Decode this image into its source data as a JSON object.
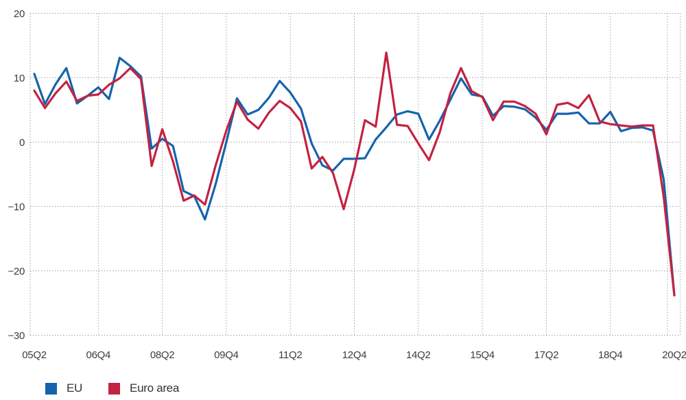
{
  "chart_data": {
    "type": "line",
    "title": "",
    "xlabel": "",
    "ylabel": "",
    "ylim": [
      -30,
      20
    ],
    "y_ticks": [
      20,
      10,
      0,
      -10,
      -20,
      -30
    ],
    "x_tick_labels": [
      "05Q2",
      "06Q4",
      "08Q2",
      "09Q4",
      "11Q2",
      "12Q4",
      "14Q2",
      "15Q4",
      "17Q2",
      "18Q4",
      "20Q2"
    ],
    "grid": "dotted",
    "legend_position": "bottom-left",
    "quarters": [
      "05Q2",
      "05Q3",
      "05Q4",
      "06Q1",
      "06Q2",
      "06Q3",
      "06Q4",
      "07Q1",
      "07Q2",
      "07Q3",
      "07Q4",
      "08Q1",
      "08Q2",
      "08Q3",
      "08Q4",
      "09Q1",
      "09Q2",
      "09Q3",
      "09Q4",
      "10Q1",
      "10Q2",
      "10Q3",
      "10Q4",
      "11Q1",
      "11Q2",
      "11Q3",
      "11Q4",
      "12Q1",
      "12Q2",
      "12Q3",
      "12Q4",
      "13Q1",
      "13Q2",
      "13Q3",
      "13Q4",
      "14Q1",
      "14Q2",
      "14Q3",
      "14Q4",
      "15Q1",
      "15Q2",
      "15Q3",
      "15Q4",
      "16Q1",
      "16Q2",
      "16Q3",
      "16Q4",
      "17Q1",
      "17Q2",
      "17Q3",
      "17Q4",
      "18Q1",
      "18Q2",
      "18Q3",
      "18Q4",
      "19Q1",
      "19Q2",
      "19Q3",
      "19Q4",
      "20Q1",
      "20Q2"
    ],
    "series": [
      {
        "name": "EU",
        "color": "#1563ac",
        "values": [
          10.6,
          5.9,
          9.0,
          11.5,
          6.0,
          7.2,
          8.5,
          6.7,
          13.1,
          11.8,
          10.2,
          -1.0,
          0.5,
          -0.6,
          -7.6,
          -8.4,
          -12.0,
          -6.5,
          0.0,
          6.8,
          4.3,
          5.0,
          6.9,
          9.5,
          7.7,
          5.2,
          -0.2,
          -3.6,
          -4.4,
          -2.6,
          -2.6,
          -2.5,
          0.4,
          2.3,
          4.3,
          4.8,
          4.4,
          0.4,
          3.3,
          6.6,
          9.9,
          7.4,
          7.1,
          4.1,
          5.6,
          5.5,
          5.1,
          3.8,
          1.9,
          4.4,
          4.4,
          4.6,
          2.9,
          2.9,
          4.7,
          1.7,
          2.2,
          2.3,
          1.8,
          -5.8,
          -23.8
        ]
      },
      {
        "name": "Euro area",
        "color": "#c32240",
        "values": [
          8.0,
          5.3,
          7.6,
          9.4,
          6.4,
          7.2,
          7.4,
          8.9,
          9.9,
          11.5,
          9.8,
          -3.7,
          2.0,
          -3.0,
          -9.1,
          -8.3,
          -9.7,
          -3.6,
          1.8,
          6.3,
          3.5,
          2.1,
          4.6,
          6.4,
          5.3,
          3.2,
          -4.1,
          -2.3,
          -4.8,
          -10.4,
          -4.2,
          3.4,
          2.4,
          13.9,
          2.7,
          2.5,
          -0.2,
          -2.8,
          1.5,
          7.6,
          11.5,
          7.9,
          7.0,
          3.4,
          6.3,
          6.3,
          5.6,
          4.4,
          1.2,
          5.8,
          6.1,
          5.3,
          7.3,
          3.2,
          2.8,
          2.6,
          2.4,
          2.6,
          2.6,
          -8.5,
          -23.8
        ]
      }
    ],
    "grid_color": "#999999"
  }
}
